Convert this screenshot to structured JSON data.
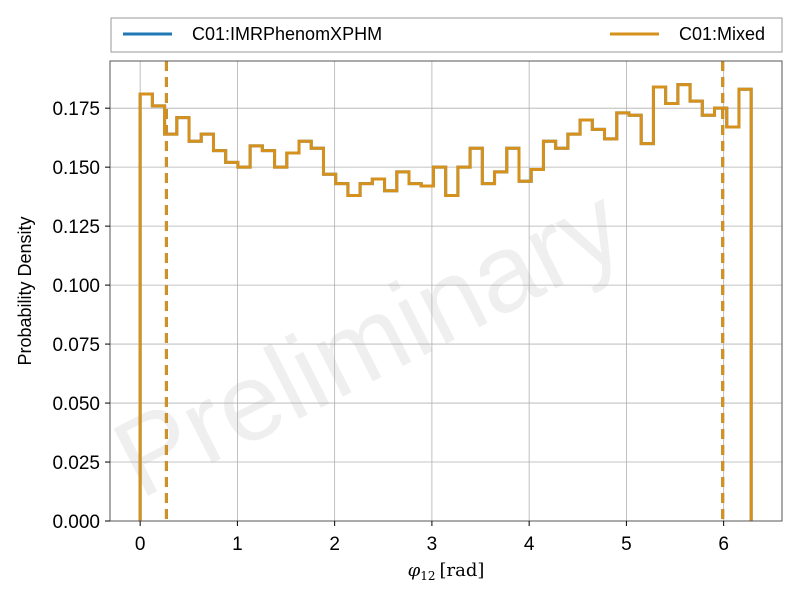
{
  "chart_data": {
    "type": "histogram",
    "xlabel": "φ12 [rad]",
    "xlabel_main": "φ",
    "xlabel_sub": "12",
    "xlabel_unit": "[rad]",
    "ylabel": "Probability Density",
    "xlim": [
      -0.31,
      6.6
    ],
    "ylim": [
      0,
      0.195
    ],
    "xticks": [
      0,
      1,
      2,
      3,
      4,
      5,
      6
    ],
    "yticks": [
      "0.000",
      "0.025",
      "0.050",
      "0.075",
      "0.100",
      "0.125",
      "0.150",
      "0.175"
    ],
    "grid": true,
    "legend_position": "top, above plot",
    "watermark": "Preliminary",
    "bin_edges": [
      0.0,
      0.1257,
      0.2513,
      0.377,
      0.5027,
      0.6283,
      0.754,
      0.8796,
      1.0053,
      1.131,
      1.2566,
      1.3823,
      1.508,
      1.6336,
      1.7593,
      1.885,
      2.0106,
      2.1363,
      2.2619,
      2.3876,
      2.5133,
      2.6389,
      2.7646,
      2.8903,
      3.0159,
      3.1416,
      3.2673,
      3.3929,
      3.5186,
      3.6442,
      3.7699,
      3.8956,
      4.0212,
      4.1469,
      4.2726,
      4.3982,
      4.5239,
      4.6496,
      4.7752,
      4.9009,
      5.0265,
      5.1522,
      5.2779,
      5.4035,
      5.5292,
      5.6549,
      5.7805,
      5.9062,
      6.0319,
      6.1575,
      6.2832
    ],
    "series": [
      {
        "name": "C01:IMRPhenomXPHM",
        "color": "#1f77b4",
        "values": [
          0.181,
          0.176,
          0.164,
          0.171,
          0.161,
          0.164,
          0.157,
          0.152,
          0.15,
          0.159,
          0.157,
          0.15,
          0.156,
          0.161,
          0.158,
          0.147,
          0.143,
          0.138,
          0.143,
          0.145,
          0.14,
          0.148,
          0.143,
          0.142,
          0.15,
          0.138,
          0.15,
          0.158,
          0.143,
          0.148,
          0.158,
          0.144,
          0.149,
          0.161,
          0.158,
          0.164,
          0.17,
          0.166,
          0.162,
          0.173,
          0.172,
          0.16,
          0.184,
          0.177,
          0.185,
          0.178,
          0.172,
          0.175,
          0.167,
          0.183
        ],
        "quantiles": [
          0.27,
          5.99
        ]
      },
      {
        "name": "C01:Mixed",
        "color": "#d6901c",
        "values": [
          0.181,
          0.176,
          0.164,
          0.171,
          0.161,
          0.164,
          0.157,
          0.152,
          0.15,
          0.159,
          0.157,
          0.15,
          0.156,
          0.161,
          0.158,
          0.147,
          0.143,
          0.138,
          0.143,
          0.145,
          0.14,
          0.148,
          0.143,
          0.142,
          0.15,
          0.138,
          0.15,
          0.158,
          0.143,
          0.148,
          0.158,
          0.144,
          0.149,
          0.161,
          0.158,
          0.164,
          0.17,
          0.166,
          0.162,
          0.173,
          0.172,
          0.16,
          0.184,
          0.177,
          0.185,
          0.178,
          0.172,
          0.175,
          0.167,
          0.183
        ],
        "quantiles": [
          0.27,
          5.99
        ]
      }
    ]
  }
}
